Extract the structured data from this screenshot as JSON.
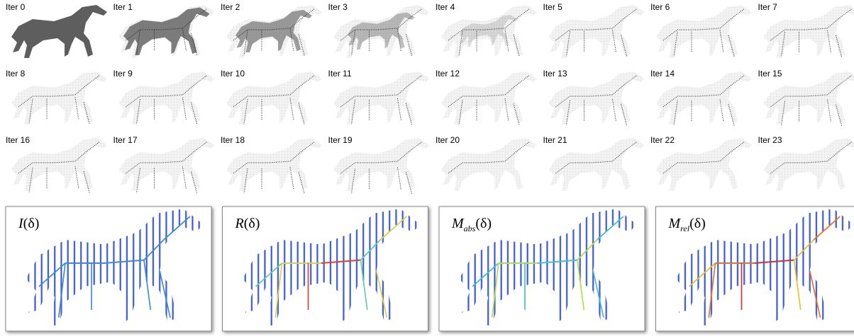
{
  "panels": [
    {
      "label": "Iter 0"
    },
    {
      "label": "Iter 1"
    },
    {
      "label": "Iter 2"
    },
    {
      "label": "Iter 3"
    },
    {
      "label": "Iter 4"
    },
    {
      "label": "Iter 5"
    },
    {
      "label": "Iter 6"
    },
    {
      "label": "Iter 7"
    },
    {
      "label": "Iter 8"
    },
    {
      "label": "Iter 9"
    },
    {
      "label": "Iter 10"
    },
    {
      "label": "Iter 11"
    },
    {
      "label": "Iter 12"
    },
    {
      "label": "Iter 13"
    },
    {
      "label": "Iter 14"
    },
    {
      "label": "Iter 15"
    },
    {
      "label": "Iter 16"
    },
    {
      "label": "Iter 17"
    },
    {
      "label": "Iter 18"
    },
    {
      "label": "Iter 19"
    },
    {
      "label": "Iter 20"
    },
    {
      "label": "Iter 21"
    },
    {
      "label": "Iter 22"
    },
    {
      "label": "Iter 23"
    }
  ],
  "maps": [
    {
      "main": "I",
      "arg": "(δ)"
    },
    {
      "main": "R",
      "arg": "(δ)"
    },
    {
      "main": "M",
      "sub": "abs",
      "arg": "(δ)"
    },
    {
      "main": "M",
      "sub": "rel",
      "arg": "(δ)"
    }
  ]
}
